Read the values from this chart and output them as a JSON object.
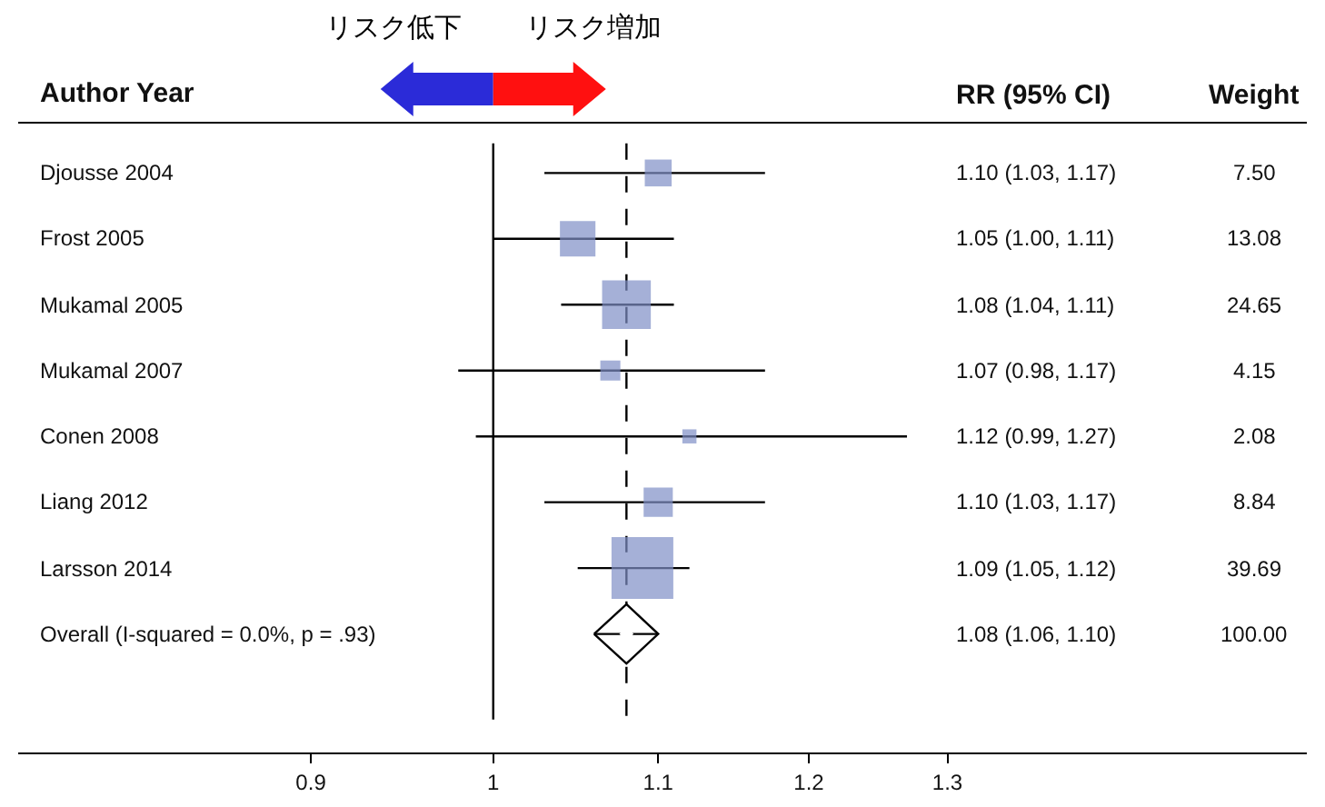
{
  "chart_data": [
    {
      "type": "scatter",
      "orientation": "horizontal",
      "log": "x",
      "grid": false,
      "categories": [
        "Djousse 2004",
        "Frost 2005",
        "Mukamal 2005",
        "Mukamal 2007",
        "Conen 2008",
        "Liang 2012",
        "Larsson 2014",
        "Overall (I-squared = 0.0%, p = .93)"
      ],
      "xlim": [
        0.76,
        1.6
      ],
      "xticks": [
        0.9,
        1,
        1.1,
        1.2,
        1.3
      ],
      "ref_lines": [
        {
          "axis": "x",
          "value": 1,
          "line_style": "solid",
          "color": "#000000"
        },
        {
          "axis": "x",
          "value": 1.08,
          "line_style": "dashed",
          "color": "#000000"
        }
      ],
      "annotations": [
        "Author Year",
        "リスク低下",
        "リスク増加"
      ],
      "series": [
        {
          "marker": "square",
          "color": "#7f8fc6",
          "values": [
            1.1,
            1.05,
            1.08,
            1.07,
            1.12,
            1.1,
            1.09,
            null
          ],
          "errors": [
            [
              1.03,
              1.17
            ],
            [
              1.0,
              1.11
            ],
            [
              1.04,
              1.11
            ],
            [
              0.98,
              1.17
            ],
            [
              0.99,
              1.27
            ],
            [
              1.03,
              1.17
            ],
            [
              1.05,
              1.12
            ],
            null
          ],
          "sizes": [
            0.189,
            0.33,
            0.621,
            0.105,
            0.052,
            0.223,
            1,
            null
          ]
        },
        {
          "marker": "diamond",
          "color": "#ffffff",
          "values": [
            null,
            null,
            null,
            null,
            null,
            null,
            null,
            1.08
          ],
          "errors": [
            null,
            null,
            null,
            null,
            null,
            null,
            null,
            [
              1.06,
              1.1
            ]
          ]
        }
      ]
    },
    {
      "type": "other",
      "annotations": [
        "RR (95% CI)",
        "Weight",
        "1.10 (1.03, 1.17)",
        "7.50",
        "1.05 (1.00, 1.11)",
        "13.08",
        "1.08 (1.04, 1.11)",
        "24.65",
        "1.07 (0.98, 1.17)",
        "4.15",
        "1.12 (0.99, 1.27)",
        "2.08",
        "1.10 (1.03, 1.17)",
        "8.84",
        "1.09 (1.05, 1.12)",
        "39.69",
        "1.08 (1.06, 1.10)",
        "100.00"
      ]
    }
  ]
}
